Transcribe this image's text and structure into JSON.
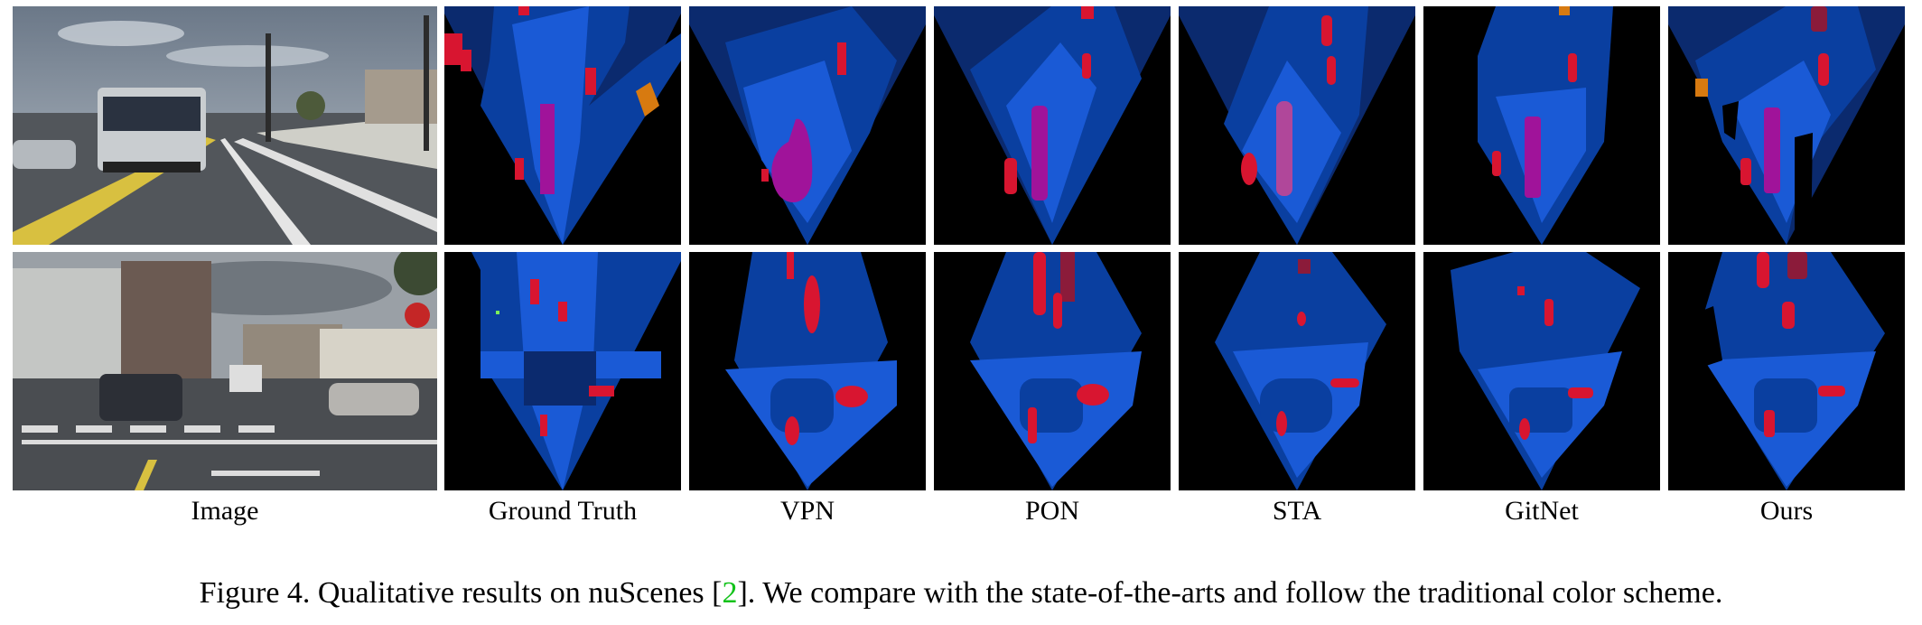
{
  "figure": {
    "column_labels": [
      "Image",
      "Ground Truth",
      "VPN",
      "PON",
      "STA",
      "GitNet",
      "Ours"
    ],
    "caption": {
      "prefix": "Figure 4. Qualitative results on nuScenes [",
      "cite": "2",
      "suffix": "]. We compare with the state-of-the-arts and follow the traditional color scheme."
    },
    "colors": {
      "background": "#000000",
      "drivable_dark": "#0b2a6e",
      "drivable": "#0a3fa0",
      "road_light": "#1a5ad6",
      "crossing": "#2e6fe0",
      "car": "#d81530",
      "bus": "#a0139a",
      "truck": "#d77a10",
      "caption_cite": "#12c21a"
    }
  }
}
